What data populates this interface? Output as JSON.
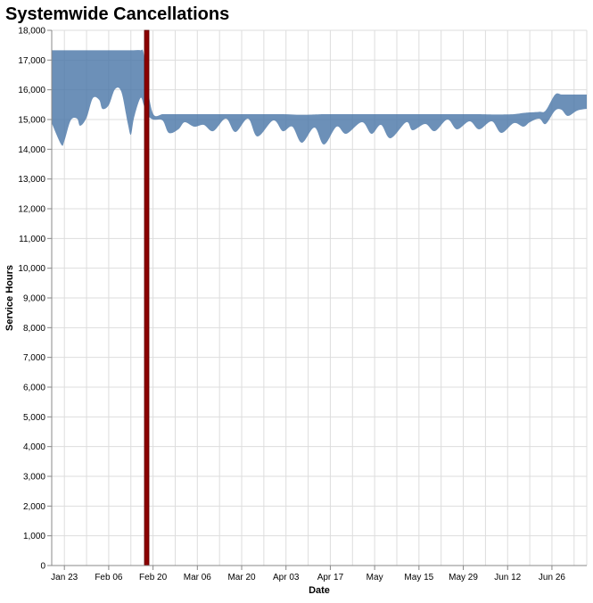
{
  "chart_data": {
    "type": "area",
    "title": "Systemwide Cancellations",
    "xlabel": "Date",
    "ylabel": "Service Hours",
    "xlim": [
      "2022-01-19",
      "2022-07-07"
    ],
    "ylim": [
      0,
      18000
    ],
    "grid": true,
    "area_color": "#4c78a8",
    "rule_color": "#8b0000",
    "rule_date": "2022-02-18",
    "y_ticks": [
      "0",
      "1,000",
      "2,000",
      "3,000",
      "4,000",
      "5,000",
      "6,000",
      "7,000",
      "8,000",
      "9,000",
      "10,000",
      "11,000",
      "12,000",
      "13,000",
      "14,000",
      "15,000",
      "16,000",
      "17,000",
      "18,000"
    ],
    "x_ticks": [
      {
        "date": "2022-01-23",
        "label": "Jan 23"
      },
      {
        "date": "2022-02-06",
        "label": "Feb 06"
      },
      {
        "date": "2022-02-20",
        "label": "Feb 20"
      },
      {
        "date": "2022-03-06",
        "label": "Mar 06"
      },
      {
        "date": "2022-03-20",
        "label": "Mar 20"
      },
      {
        "date": "2022-04-03",
        "label": "Apr 03"
      },
      {
        "date": "2022-04-17",
        "label": "Apr 17"
      },
      {
        "date": "2022-05-01",
        "label": "May"
      },
      {
        "date": "2022-05-15",
        "label": "May 15"
      },
      {
        "date": "2022-05-29",
        "label": "May 29"
      },
      {
        "date": "2022-06-12",
        "label": "Jun 12"
      },
      {
        "date": "2022-06-26",
        "label": "Jun 26"
      }
    ],
    "points": [
      [
        "2022-01-19",
        14880,
        17330
      ],
      [
        "2022-01-22",
        14160,
        17330
      ],
      [
        "2022-01-23",
        14280,
        17330
      ],
      [
        "2022-01-25",
        14970,
        17330
      ],
      [
        "2022-01-27",
        15030,
        17330
      ],
      [
        "2022-01-28",
        14790,
        17330
      ],
      [
        "2022-01-30",
        15060,
        17330
      ],
      [
        "2022-02-01",
        15720,
        17330
      ],
      [
        "2022-02-03",
        15660,
        17330
      ],
      [
        "2022-02-04",
        15360,
        17330
      ],
      [
        "2022-02-06",
        15480,
        17330
      ],
      [
        "2022-02-08",
        16020,
        17330
      ],
      [
        "2022-02-10",
        15930,
        17330
      ],
      [
        "2022-02-12",
        14880,
        17330
      ],
      [
        "2022-02-13",
        14490,
        17330
      ],
      [
        "2022-02-14",
        15060,
        17330
      ],
      [
        "2022-02-16",
        15720,
        17330
      ],
      [
        "2022-02-17",
        15510,
        17250
      ],
      [
        "2022-02-18",
        15180,
        16300
      ],
      [
        "2022-02-20",
        15000,
        15200
      ],
      [
        "2022-02-23",
        14970,
        15180
      ],
      [
        "2022-02-25",
        14550,
        15180
      ],
      [
        "2022-02-28",
        14670,
        15180
      ],
      [
        "2022-03-02",
        14910,
        15180
      ],
      [
        "2022-03-05",
        14760,
        15180
      ],
      [
        "2022-03-08",
        14820,
        15180
      ],
      [
        "2022-03-11",
        14610,
        15180
      ],
      [
        "2022-03-15",
        15030,
        15180
      ],
      [
        "2022-03-18",
        14580,
        15180
      ],
      [
        "2022-03-22",
        15030,
        15180
      ],
      [
        "2022-03-25",
        14430,
        15180
      ],
      [
        "2022-03-30",
        14970,
        15180
      ],
      [
        "2022-04-02",
        14610,
        15180
      ],
      [
        "2022-04-05",
        14760,
        15170
      ],
      [
        "2022-04-08",
        14220,
        15160
      ],
      [
        "2022-04-12",
        14730,
        15170
      ],
      [
        "2022-04-15",
        14160,
        15180
      ],
      [
        "2022-04-19",
        14760,
        15180
      ],
      [
        "2022-04-22",
        14520,
        15180
      ],
      [
        "2022-04-27",
        14910,
        15180
      ],
      [
        "2022-04-30",
        14520,
        15180
      ],
      [
        "2022-05-03",
        14820,
        15180
      ],
      [
        "2022-05-06",
        14370,
        15180
      ],
      [
        "2022-05-11",
        14910,
        15180
      ],
      [
        "2022-05-13",
        14640,
        15180
      ],
      [
        "2022-05-17",
        14850,
        15180
      ],
      [
        "2022-05-20",
        14610,
        15180
      ],
      [
        "2022-05-24",
        15000,
        15180
      ],
      [
        "2022-05-27",
        14670,
        15180
      ],
      [
        "2022-05-31",
        14940,
        15180
      ],
      [
        "2022-06-03",
        14670,
        15180
      ],
      [
        "2022-06-07",
        14940,
        15170
      ],
      [
        "2022-06-10",
        14550,
        15170
      ],
      [
        "2022-06-14",
        14880,
        15180
      ],
      [
        "2022-06-17",
        14760,
        15220
      ],
      [
        "2022-06-19",
        14910,
        15240
      ],
      [
        "2022-06-22",
        15030,
        15260
      ],
      [
        "2022-06-24",
        14850,
        15300
      ],
      [
        "2022-06-27",
        15300,
        15840
      ],
      [
        "2022-06-29",
        15330,
        15840
      ],
      [
        "2022-07-01",
        15120,
        15840
      ],
      [
        "2022-07-04",
        15300,
        15840
      ],
      [
        "2022-07-07",
        15360,
        15840
      ]
    ]
  }
}
